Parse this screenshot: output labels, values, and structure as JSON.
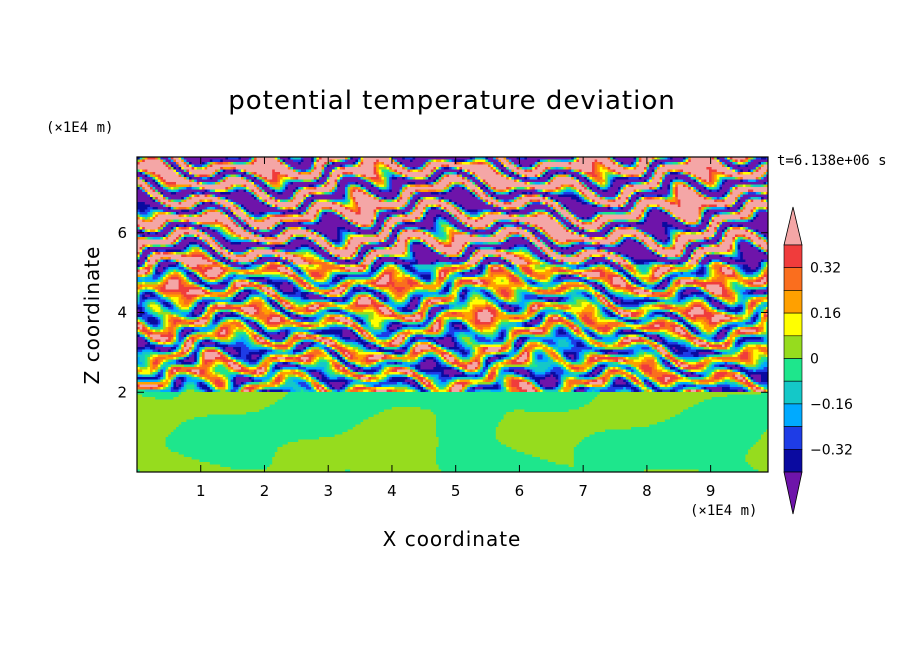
{
  "chart_data": {
    "type": "heatmap",
    "title": "potential temperature deviation",
    "time_label": "t=6.138e+06 s",
    "xlabel": "X coordinate",
    "ylabel": "Z coordinate",
    "x_scale_label": "(×1E4 m)",
    "z_scale_label": "(×1E4 m)",
    "xlim": [
      0,
      9.9
    ],
    "ylim": [
      0,
      7.9
    ],
    "x_ticks": [
      "1",
      "2",
      "3",
      "4",
      "5",
      "6",
      "7",
      "8",
      "9"
    ],
    "y_ticks": [
      "2",
      "4",
      "6"
    ],
    "colorbar": {
      "labels": [
        "0.32",
        "0.16",
        "0",
        "-0.16",
        "-0.32"
      ],
      "levels": [
        {
          "value": "above 0.40",
          "color": "#f4a6a6"
        },
        {
          "value": "0.32 to 0.40",
          "color": "#f03c3c"
        },
        {
          "value": "0.24 to 0.32",
          "color": "#fa6e1e"
        },
        {
          "value": "0.16 to 0.24",
          "color": "#ffa000"
        },
        {
          "value": "0.08 to 0.16",
          "color": "#ffff00"
        },
        {
          "value": "0 to 0.08",
          "color": "#96dc1e"
        },
        {
          "value": "-0.08 to 0",
          "color": "#1ee68c"
        },
        {
          "value": "-0.16 to -0.08",
          "color": "#14c8c8"
        },
        {
          "value": "-0.24 to -0.16",
          "color": "#00aaff"
        },
        {
          "value": "-0.32 to -0.24",
          "color": "#1e3ce6"
        },
        {
          "value": "-0.40 to -0.32",
          "color": "#0a0aa0"
        },
        {
          "value": "below -0.40",
          "color": "#6e14aa"
        }
      ]
    },
    "regions": [
      {
        "z_range": [
          0,
          2.0
        ],
        "description_levels": [
          "0 to 0.08",
          "-0.08 to 0"
        ]
      },
      {
        "z_range": [
          2.0,
          5.2
        ],
        "description_levels": "mixed all levels, layered"
      },
      {
        "z_range": [
          5.2,
          7.9
        ],
        "description_levels": [
          "above 0.40",
          "below -0.40"
        ]
      }
    ]
  }
}
